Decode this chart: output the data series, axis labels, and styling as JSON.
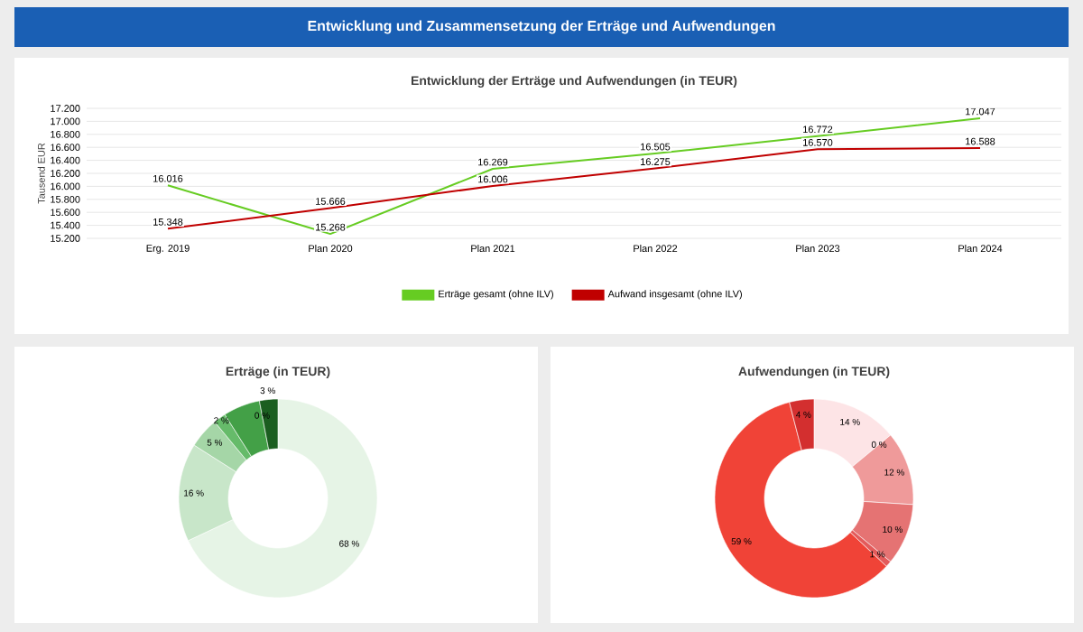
{
  "chart_data": [
    {
      "type": "line",
      "title": "Entwicklung der Erträge und Aufwendungen (in TEUR)",
      "ylabel": "Tausend EUR",
      "annotations": [
        "Entwicklung und Zusammensetzung der Erträge und Aufwendungen"
      ],
      "categories": [
        "Erg. 2019",
        "Plan 2020",
        "Plan 2021",
        "Plan 2022",
        "Plan 2023",
        "Plan 2024"
      ],
      "series": [
        {
          "name": "Erträge gesamt (ohne ILV)",
          "color": "#66cc22",
          "values": [
            16016,
            15268,
            16269,
            16505,
            16772,
            17047
          ],
          "value_labels": [
            "16.016",
            "15.268",
            "16.269",
            "16.505",
            "16.772",
            "17.047"
          ]
        },
        {
          "name": "Aufwand insgesamt (ohne ILV)",
          "color": "#c00000",
          "values": [
            15348,
            15666,
            16006,
            16275,
            16570,
            16588
          ],
          "value_labels": [
            "15.348",
            "15.666",
            "16.006",
            "16.275",
            "16.570",
            "16.588"
          ]
        }
      ],
      "ylim": [
        15200,
        17200
      ],
      "yticks": [
        {
          "value": 15200,
          "label": "15.200"
        },
        {
          "value": 15400,
          "label": "15.400"
        },
        {
          "value": 15600,
          "label": "15.600"
        },
        {
          "value": 15800,
          "label": "15.800"
        },
        {
          "value": 16000,
          "label": "16.000"
        },
        {
          "value": 16200,
          "label": "16.200"
        },
        {
          "value": 16400,
          "label": "16.400"
        },
        {
          "value": 16600,
          "label": "16.600"
        },
        {
          "value": 16800,
          "label": "16.800"
        },
        {
          "value": 17000,
          "label": "17.000"
        },
        {
          "value": 17200,
          "label": "17.200"
        }
      ],
      "grid": "y",
      "legend": "bottom"
    },
    {
      "type": "donut",
      "title": "Erträge (in TEUR)",
      "categories": [
        null,
        null,
        null,
        null,
        null,
        null,
        null
      ],
      "values": [
        68,
        16,
        5,
        2,
        6,
        0,
        3
      ],
      "colors": [
        "#e6f4e6",
        "#c8e6c9",
        "#a5d6a7",
        "#66bb6a",
        "#43a047",
        "#2e7d32",
        "#1b5e20"
      ],
      "value_labels": [
        "68 %",
        "16 %",
        "5 %",
        "2 %",
        null,
        "0 %",
        "3 %"
      ]
    },
    {
      "type": "donut",
      "title": "Aufwendungen (in TEUR)",
      "categories": [
        null,
        null,
        null,
        null,
        null,
        null,
        null
      ],
      "values": [
        14,
        0,
        12,
        10,
        1,
        59,
        4
      ],
      "colors": [
        "#fde4e6",
        "#f7c6c8",
        "#ef9a9a",
        "#e57373",
        "#e35b5b",
        "#f04337",
        "#d32f2f"
      ],
      "value_labels": [
        "14 %",
        "0 %",
        "12 %",
        "10 %",
        "1 %",
        "59 %",
        "4 %"
      ]
    }
  ]
}
